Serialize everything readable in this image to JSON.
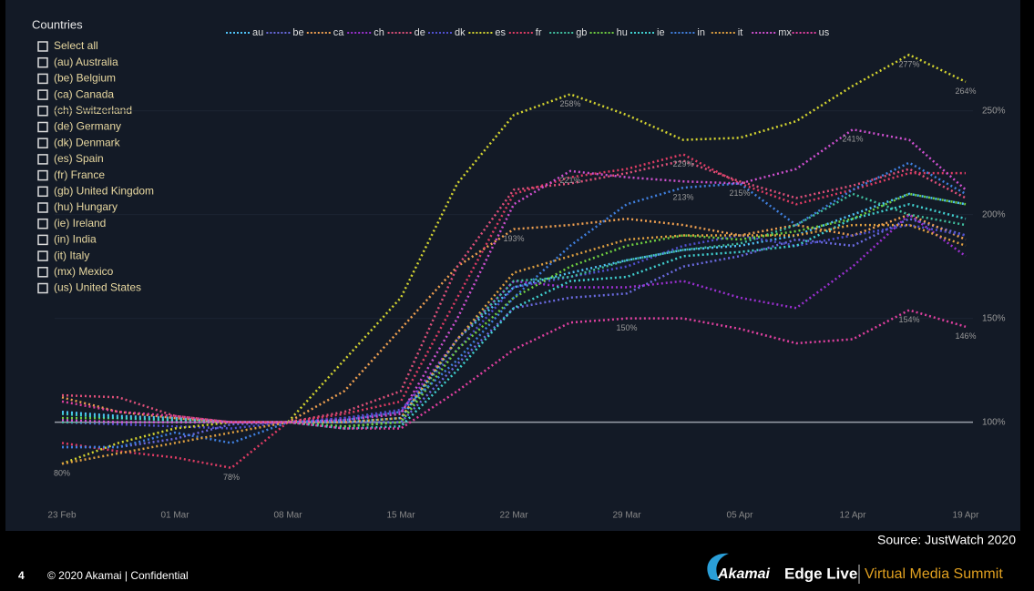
{
  "panel": {
    "title": "Countries",
    "options": [
      "Select all",
      "(au) Australia",
      "(be) Belgium",
      "(ca) Canada",
      "(ch) Switzerland",
      "(de) Germany",
      "(dk) Denmark",
      "(es) Spain",
      "(fr) France",
      "(gb) United Kingdom",
      "(hu) Hungary",
      "(ie) Ireland",
      "(in) India",
      "(it) Italy",
      "(mx) Mexico",
      "(us) United States"
    ]
  },
  "chart_data": {
    "type": "line",
    "categories": [
      "23 Feb",
      null,
      "01 Mar",
      null,
      "08 Mar",
      null,
      "15 Mar",
      null,
      "22 Mar",
      null,
      "29 Mar",
      null,
      "05 Apr",
      null,
      "12 Apr",
      null,
      "19 Apr"
    ],
    "ylim": [
      63,
      299
    ],
    "yticks": [
      {
        "value": 100,
        "label": "100%"
      },
      {
        "value": 150,
        "label": "150%"
      },
      {
        "value": 200,
        "label": "200%"
      },
      {
        "value": 250,
        "label": "250%"
      }
    ],
    "grid": true,
    "series": [
      {
        "name": "au",
        "color": "#4fc3f7",
        "values": [
          105,
          103,
          102,
          100,
          100,
          100,
          102,
          140,
          165,
          172,
          178,
          183,
          185,
          190,
          200,
          210,
          205
        ]
      },
      {
        "name": "be",
        "color": "#6a6ae0",
        "values": [
          88,
          88,
          92,
          99,
          100,
          100,
          100,
          128,
          155,
          160,
          162,
          175,
          180,
          188,
          185,
          198,
          190
        ]
      },
      {
        "name": "ca",
        "color": "#f0a050",
        "values": [
          112,
          105,
          102,
          100,
          100,
          115,
          145,
          175,
          193,
          195,
          198,
          195,
          190,
          195,
          190,
          200,
          188
        ],
        "value_labels": [
          null,
          null,
          null,
          null,
          null,
          null,
          null,
          null,
          "193%",
          null,
          null,
          null,
          null,
          null,
          null,
          null,
          null
        ]
      },
      {
        "name": "ch",
        "color": "#9b30d0",
        "values": [
          101,
          100,
          100,
          100,
          100,
          102,
          105,
          140,
          168,
          165,
          165,
          168,
          160,
          155,
          175,
          200,
          180
        ]
      },
      {
        "name": "de",
        "color": "#e0507a",
        "values": [
          113,
          112,
          103,
          100,
          100,
          105,
          115,
          175,
          212,
          215,
          220,
          226,
          216,
          208,
          214,
          222,
          208
        ]
      },
      {
        "name": "dk",
        "color": "#5050d0",
        "values": [
          100,
          99,
          98,
          97,
          100,
          102,
          106,
          135,
          165,
          170,
          175,
          185,
          190,
          185,
          190,
          195,
          190
        ]
      },
      {
        "name": "es",
        "color": "#d4d430",
        "values": [
          80,
          90,
          97,
          100,
          100,
          130,
          160,
          215,
          248,
          258,
          248,
          236,
          237,
          245,
          262,
          277,
          264
        ],
        "value_labels": [
          null,
          null,
          null,
          null,
          null,
          null,
          null,
          null,
          null,
          "258%",
          null,
          null,
          null,
          null,
          null,
          "277%",
          "264%"
        ]
      },
      {
        "name": "fr",
        "color": "#e03c64",
        "values": [
          90,
          86,
          83,
          78,
          100,
          104,
          110,
          160,
          210,
          218,
          222,
          229,
          215,
          205,
          212,
          220,
          220
        ],
        "value_labels": [
          null,
          null,
          null,
          "78%",
          null,
          null,
          null,
          null,
          null,
          null,
          null,
          "229%",
          null,
          null,
          null,
          null,
          null
        ]
      },
      {
        "name": "gb",
        "color": "#40c0a0",
        "values": [
          100,
          100,
          100,
          100,
          100,
          98,
          100,
          140,
          168,
          170,
          178,
          183,
          186,
          195,
          210,
          200,
          195
        ]
      },
      {
        "name": "hu",
        "color": "#70d040",
        "values": [
          102,
          102,
          101,
          100,
          100,
          98,
          100,
          135,
          160,
          175,
          185,
          190,
          188,
          192,
          198,
          210,
          205
        ]
      },
      {
        "name": "ie",
        "color": "#40d0d0",
        "values": [
          104,
          102,
          101,
          100,
          100,
          97,
          98,
          125,
          155,
          168,
          170,
          180,
          182,
          185,
          198,
          205,
          198
        ]
      },
      {
        "name": "in",
        "color": "#4080e0",
        "values": [
          88,
          88,
          95,
          90,
          100,
          101,
          105,
          130,
          160,
          185,
          205,
          213,
          215,
          195,
          212,
          225,
          210
        ],
        "value_labels": [
          null,
          null,
          null,
          null,
          null,
          null,
          null,
          null,
          null,
          null,
          null,
          "213%",
          "215%",
          null,
          null,
          null,
          null
        ]
      },
      {
        "name": "it",
        "color": "#e0a040",
        "values": [
          80,
          85,
          90,
          95,
          100,
          100,
          102,
          140,
          172,
          180,
          188,
          190,
          190,
          190,
          195,
          195,
          185
        ],
        "value_labels": [
          "80%",
          null,
          null,
          null,
          null,
          null,
          null,
          null,
          null,
          null,
          null,
          null,
          null,
          null,
          null,
          null,
          null
        ]
      },
      {
        "name": "mx",
        "color": "#d050d0",
        "values": [
          101,
          100,
          100,
          100,
          100,
          101,
          104,
          150,
          205,
          221,
          218,
          216,
          215,
          222,
          241,
          236,
          212
        ],
        "value_labels": [
          null,
          null,
          null,
          null,
          null,
          null,
          null,
          null,
          null,
          "221%",
          null,
          null,
          null,
          null,
          "241%",
          null,
          null
        ]
      },
      {
        "name": "us",
        "color": "#e040a0",
        "values": [
          110,
          105,
          103,
          100,
          100,
          97,
          97,
          115,
          135,
          148,
          150,
          150,
          145,
          138,
          140,
          154,
          146
        ],
        "value_labels": [
          null,
          null,
          null,
          null,
          null,
          null,
          null,
          null,
          null,
          null,
          "150%",
          null,
          null,
          null,
          null,
          "154%",
          "146%"
        ]
      }
    ]
  },
  "footer": {
    "source": "Source: JustWatch 2020",
    "page": "4",
    "copyright": "© 2020 Akamai | Confidential",
    "brand": "Akamai",
    "event": "Edge Live",
    "subtitle": "Virtual Media Summit"
  }
}
